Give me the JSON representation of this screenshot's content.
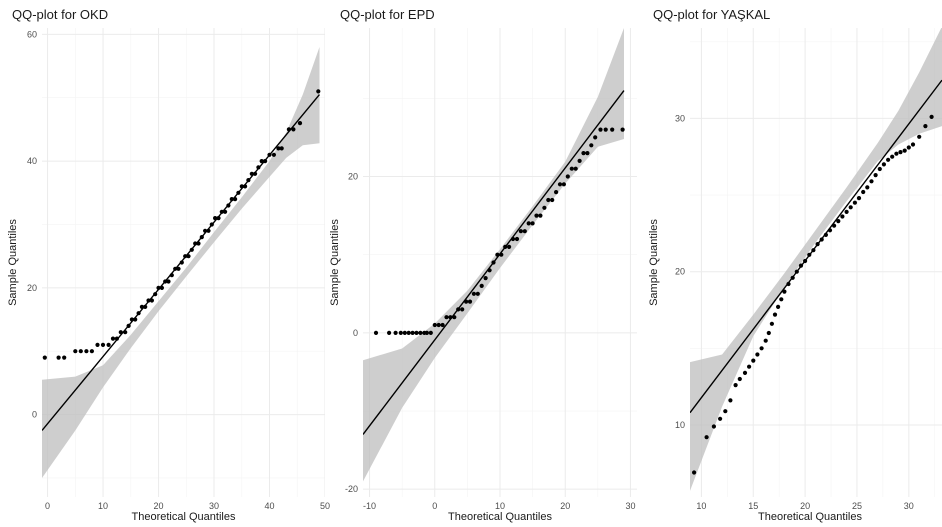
{
  "chart_data": [
    {
      "type": "scatter",
      "title": "QQ-plot for OKD",
      "xlabel": "Theoretical Quantiles",
      "ylabel": "Sample Quantiles",
      "xlim": [
        -1,
        50
      ],
      "ylim": [
        -13,
        61
      ],
      "xticks": [
        0,
        10,
        20,
        30,
        40,
        50
      ],
      "yticks": [
        0,
        20,
        40,
        60
      ],
      "grid": true,
      "line": [
        [
          -1,
          -2.5
        ],
        [
          49,
          50.5
        ]
      ],
      "band": {
        "x": [
          -1,
          5,
          10,
          15,
          20,
          25,
          30,
          35,
          40,
          43,
          46,
          49
        ],
        "lower": [
          -10,
          -2.5,
          4.3,
          10.5,
          16.3,
          21.8,
          27.2,
          32.5,
          37.5,
          40.5,
          42.5,
          42.8
        ],
        "upper": [
          5.5,
          6.0,
          7.8,
          12.6,
          17.9,
          23.2,
          28.8,
          34.3,
          40.0,
          44.5,
          50.5,
          58.0
        ]
      },
      "points": [
        [
          -0.5,
          9
        ],
        [
          2,
          9
        ],
        [
          3,
          9
        ],
        [
          5,
          10
        ],
        [
          6,
          10
        ],
        [
          7,
          10
        ],
        [
          8,
          10
        ],
        [
          9,
          11
        ],
        [
          10,
          11
        ],
        [
          11,
          11
        ],
        [
          11.8,
          12
        ],
        [
          12.5,
          12
        ],
        [
          13.2,
          13
        ],
        [
          14,
          13
        ],
        [
          14.6,
          14
        ],
        [
          15.2,
          15
        ],
        [
          15.8,
          15
        ],
        [
          16.4,
          16
        ],
        [
          17,
          17
        ],
        [
          17.6,
          17
        ],
        [
          18.2,
          18
        ],
        [
          18.8,
          18
        ],
        [
          19.4,
          19
        ],
        [
          20,
          20
        ],
        [
          20.6,
          20
        ],
        [
          21.2,
          21
        ],
        [
          21.8,
          21
        ],
        [
          22.4,
          22
        ],
        [
          23,
          23
        ],
        [
          23.6,
          23
        ],
        [
          24.2,
          24
        ],
        [
          24.8,
          25
        ],
        [
          25.4,
          25
        ],
        [
          26,
          26
        ],
        [
          26.6,
          27
        ],
        [
          27.2,
          27
        ],
        [
          27.8,
          28
        ],
        [
          28.4,
          29
        ],
        [
          29,
          29
        ],
        [
          29.6,
          30
        ],
        [
          30.2,
          31
        ],
        [
          30.8,
          31
        ],
        [
          31.4,
          32
        ],
        [
          32,
          32
        ],
        [
          32.6,
          33
        ],
        [
          33.2,
          34
        ],
        [
          33.8,
          34
        ],
        [
          34.4,
          35
        ],
        [
          35,
          36
        ],
        [
          35.6,
          36
        ],
        [
          36.2,
          37
        ],
        [
          36.8,
          38
        ],
        [
          37.4,
          38
        ],
        [
          38,
          39
        ],
        [
          38.6,
          40
        ],
        [
          39.2,
          40
        ],
        [
          40,
          41
        ],
        [
          40.8,
          41
        ],
        [
          41.6,
          42
        ],
        [
          42.2,
          42
        ],
        [
          43.5,
          45
        ],
        [
          44.3,
          45
        ],
        [
          45.5,
          46
        ],
        [
          48.8,
          51
        ]
      ]
    },
    {
      "type": "scatter",
      "title": "QQ-plot for EPD",
      "xlabel": "Theoretical Quantiles",
      "ylabel": "Sample Quantiles",
      "xlim": [
        -11,
        31
      ],
      "ylim": [
        -21,
        39
      ],
      "xticks": [
        -10,
        0,
        10,
        20,
        30
      ],
      "yticks": [
        -20,
        0,
        20
      ],
      "grid": true,
      "line": [
        [
          -11,
          -13
        ],
        [
          29,
          31
        ]
      ],
      "band": {
        "x": [
          -11,
          -5,
          0,
          5,
          10,
          15,
          20,
          25,
          29
        ],
        "lower": [
          -19,
          -9.6,
          -3.2,
          2.5,
          8.3,
          13.8,
          19.1,
          23.8,
          24.8
        ],
        "upper": [
          -3.5,
          -2.0,
          1.2,
          5.4,
          10.7,
          16.2,
          21.9,
          30.2,
          39.0
        ]
      },
      "points": [
        [
          -9,
          0
        ],
        [
          -7,
          0
        ],
        [
          -6,
          0
        ],
        [
          -5.2,
          0
        ],
        [
          -4.6,
          0
        ],
        [
          -4,
          0
        ],
        [
          -3.4,
          0
        ],
        [
          -2.8,
          0
        ],
        [
          -2.2,
          0
        ],
        [
          -1.6,
          0
        ],
        [
          -1.2,
          0
        ],
        [
          -0.6,
          0
        ],
        [
          0,
          1
        ],
        [
          0.6,
          1
        ],
        [
          1.2,
          1
        ],
        [
          1.8,
          2
        ],
        [
          2.4,
          2
        ],
        [
          3,
          2
        ],
        [
          3.6,
          3
        ],
        [
          4.2,
          3
        ],
        [
          4.8,
          4
        ],
        [
          5.4,
          4
        ],
        [
          6,
          5
        ],
        [
          6.6,
          5
        ],
        [
          7.2,
          6
        ],
        [
          7.8,
          7
        ],
        [
          8.4,
          8
        ],
        [
          9,
          9
        ],
        [
          9.6,
          10
        ],
        [
          10.2,
          10
        ],
        [
          10.8,
          11
        ],
        [
          11.4,
          11
        ],
        [
          12,
          12
        ],
        [
          12.6,
          12
        ],
        [
          13.2,
          13
        ],
        [
          13.8,
          13
        ],
        [
          14.4,
          14
        ],
        [
          15,
          14
        ],
        [
          15.6,
          15
        ],
        [
          16.2,
          15
        ],
        [
          16.8,
          16
        ],
        [
          17.4,
          17
        ],
        [
          18,
          17
        ],
        [
          18.6,
          18
        ],
        [
          19.2,
          19
        ],
        [
          19.8,
          19
        ],
        [
          20.4,
          20
        ],
        [
          21,
          21
        ],
        [
          21.6,
          21
        ],
        [
          22.2,
          22
        ],
        [
          22.8,
          23
        ],
        [
          23.4,
          23
        ],
        [
          24,
          24
        ],
        [
          24.6,
          25
        ],
        [
          25.4,
          26
        ],
        [
          26.2,
          26
        ],
        [
          27.2,
          26
        ],
        [
          28.8,
          26
        ]
      ]
    },
    {
      "type": "scatter",
      "title": "QQ-plot for YAŞKAL",
      "xlabel": "Theoretical Quantiles",
      "ylabel": "Sample Quantiles",
      "xlim": [
        8.9,
        33.2
      ],
      "ylim": [
        5.3,
        35.9
      ],
      "xticks": [
        10,
        15,
        20,
        25,
        30
      ],
      "yticks": [
        10,
        20,
        30
      ],
      "grid": true,
      "line": [
        [
          8.9,
          10.8
        ],
        [
          33.2,
          32.5
        ]
      ],
      "band": {
        "x": [
          8.9,
          12,
          15,
          18,
          21,
          24,
          27,
          29,
          31,
          33.2
        ],
        "lower": [
          5.7,
          11.2,
          15.8,
          19.0,
          21.9,
          24.6,
          27.2,
          28.3,
          29.0,
          29.5
        ],
        "upper": [
          14.1,
          14.6,
          17.2,
          19.9,
          22.7,
          25.5,
          28.4,
          30.5,
          33.0,
          36.0
        ]
      },
      "points": [
        [
          9.3,
          6.9
        ],
        [
          10.5,
          9.2
        ],
        [
          11.2,
          9.9
        ],
        [
          11.8,
          10.4
        ],
        [
          12.3,
          10.9
        ],
        [
          12.8,
          11.6
        ],
        [
          13.3,
          12.6
        ],
        [
          13.7,
          13.0
        ],
        [
          14.2,
          13.4
        ],
        [
          14.6,
          13.8
        ],
        [
          15.0,
          14.2
        ],
        [
          15.4,
          14.6
        ],
        [
          15.8,
          15.0
        ],
        [
          16.2,
          15.5
        ],
        [
          16.5,
          16.0
        ],
        [
          16.8,
          16.6
        ],
        [
          17.1,
          17.2
        ],
        [
          17.4,
          17.7
        ],
        [
          17.7,
          18.2
        ],
        [
          18.0,
          18.7
        ],
        [
          18.4,
          19.2
        ],
        [
          18.8,
          19.6
        ],
        [
          19.2,
          20.0
        ],
        [
          19.6,
          20.4
        ],
        [
          20.0,
          20.7
        ],
        [
          20.4,
          21.1
        ],
        [
          20.8,
          21.4
        ],
        [
          21.2,
          21.8
        ],
        [
          21.6,
          22.1
        ],
        [
          22.0,
          22.4
        ],
        [
          22.4,
          22.7
        ],
        [
          22.8,
          23.0
        ],
        [
          23.2,
          23.3
        ],
        [
          23.6,
          23.6
        ],
        [
          24.0,
          23.9
        ],
        [
          24.4,
          24.2
        ],
        [
          24.8,
          24.5
        ],
        [
          25.2,
          24.8
        ],
        [
          25.6,
          25.2
        ],
        [
          26.0,
          25.5
        ],
        [
          26.4,
          25.9
        ],
        [
          26.8,
          26.3
        ],
        [
          27.2,
          26.7
        ],
        [
          27.6,
          27.0
        ],
        [
          28.0,
          27.3
        ],
        [
          28.4,
          27.5
        ],
        [
          28.8,
          27.7
        ],
        [
          29.2,
          27.8
        ],
        [
          29.6,
          27.9
        ],
        [
          30.0,
          28.1
        ],
        [
          30.4,
          28.3
        ],
        [
          31.0,
          28.8
        ],
        [
          31.6,
          29.5
        ],
        [
          32.2,
          30.1
        ]
      ]
    }
  ]
}
